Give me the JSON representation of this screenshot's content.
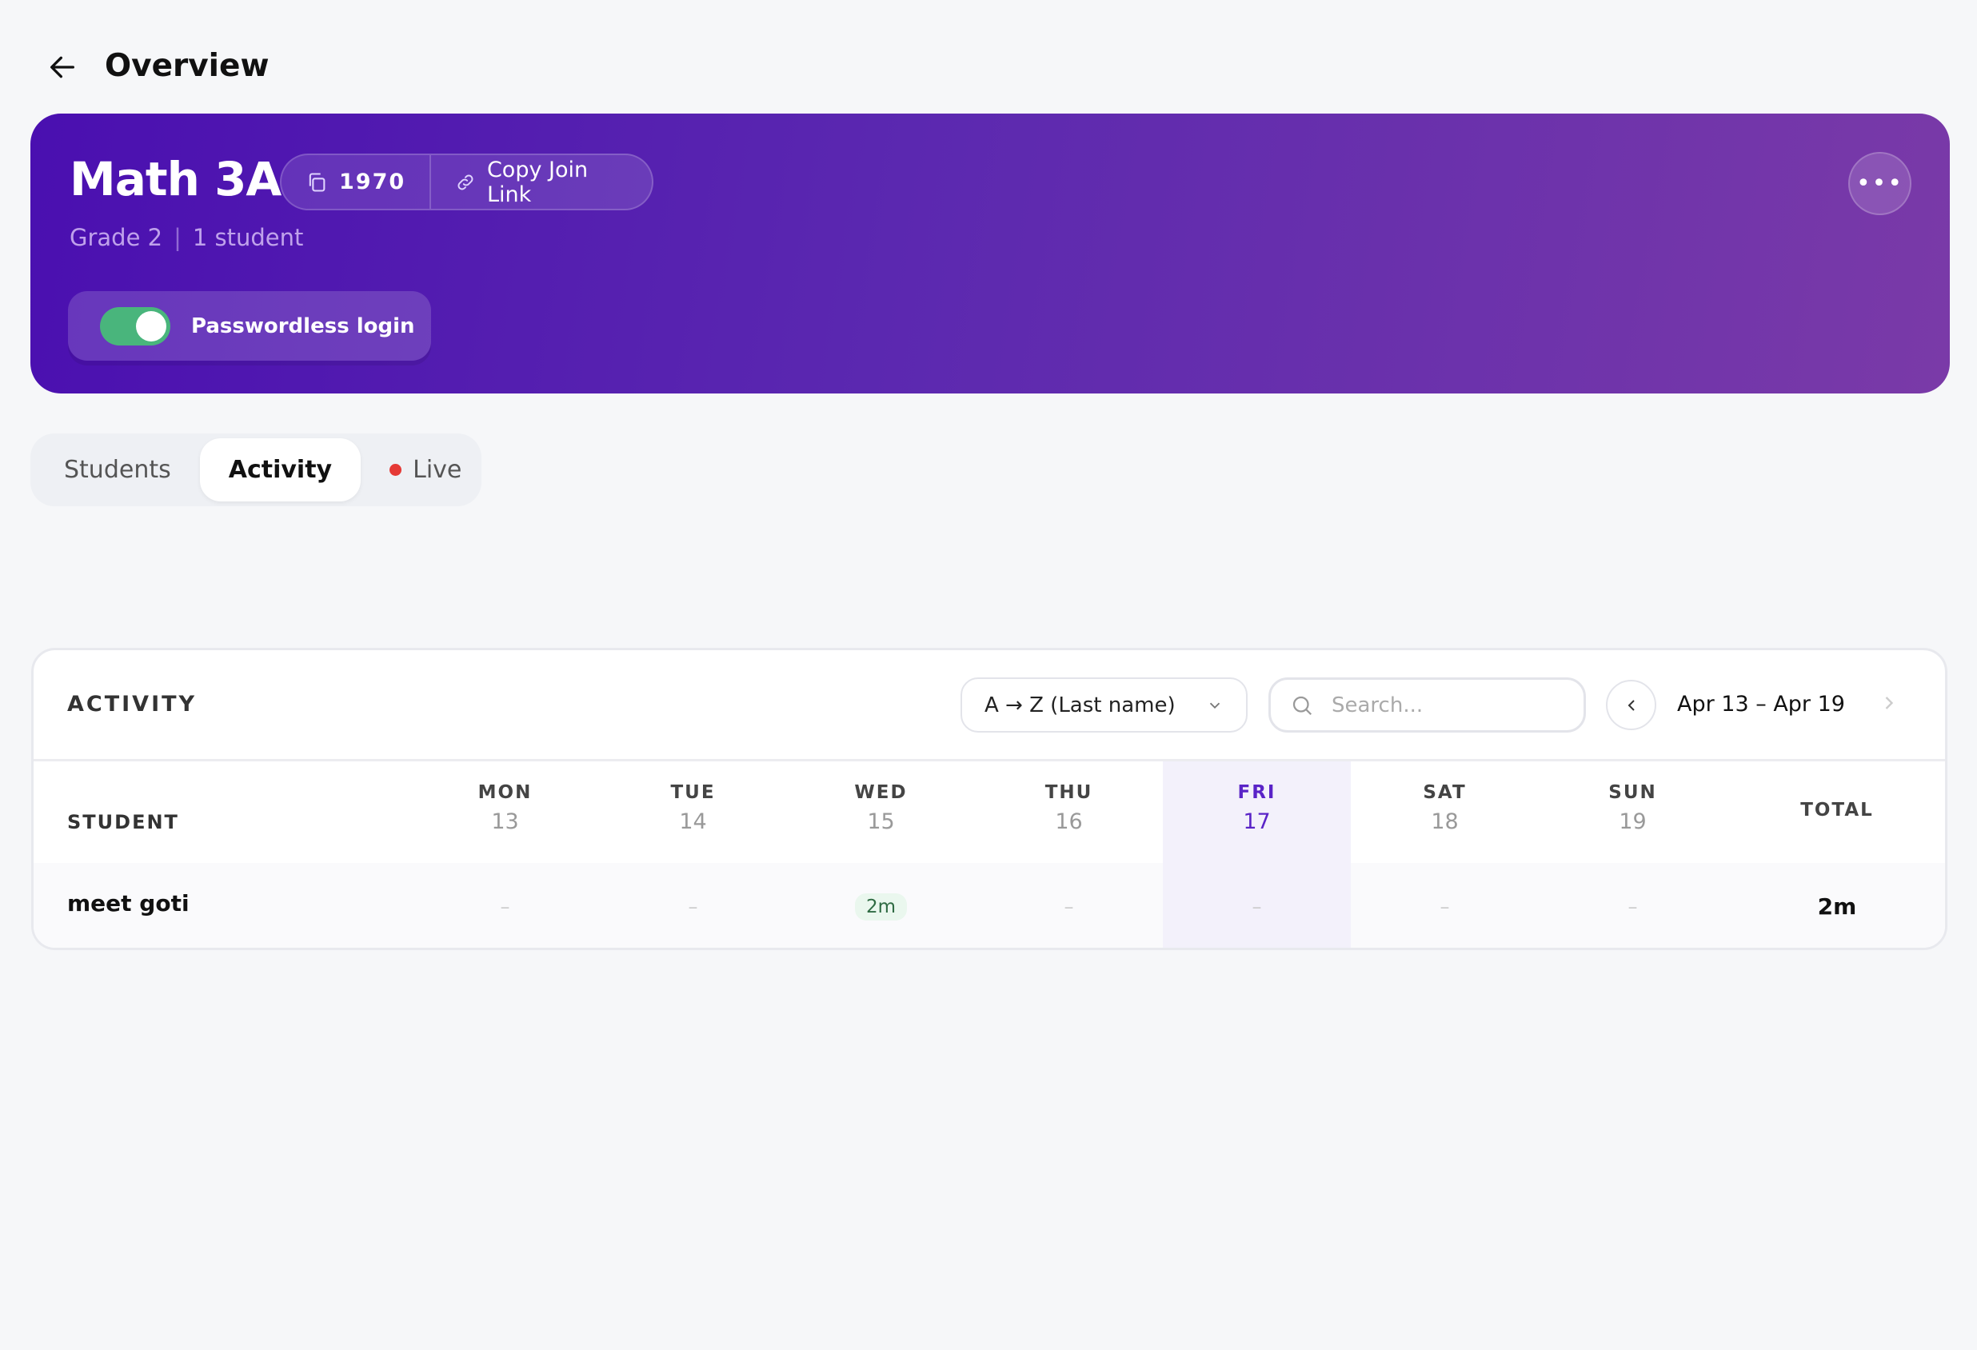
{
  "header": {
    "title": "Overview",
    "back_icon": "arrow-left-icon"
  },
  "class": {
    "name": "Math 3A",
    "code": "1970",
    "copy_link_label": "Copy Join Link",
    "grade": "Grade 2",
    "students": "1 student",
    "passwordless_label": "Passwordless login",
    "passwordless_enabled": true,
    "more_label": "•••"
  },
  "colors": {
    "banner_start": "#4a0fb0",
    "banner_end": "#7a3aa8",
    "toggle_on": "#49b57c",
    "today": "#5a24c7",
    "live_dot": "#e53935"
  },
  "tabs": [
    {
      "label": "Students"
    },
    {
      "label": "Activity",
      "active": true
    },
    {
      "label": "Live"
    }
  ],
  "activity": {
    "title": "ACTIVITY",
    "sort": "A → Z (Last name)",
    "search_placeholder": "Search...",
    "range": "Apr 13 – Apr 19",
    "student_header": "STUDENT",
    "total_header": "TOTAL",
    "days": [
      {
        "name": "MON",
        "num": "13"
      },
      {
        "name": "TUE",
        "num": "14"
      },
      {
        "name": "WED",
        "num": "15"
      },
      {
        "name": "THU",
        "num": "16"
      },
      {
        "name": "FRI",
        "num": "17",
        "today": true
      },
      {
        "name": "SAT",
        "num": "18"
      },
      {
        "name": "SUN",
        "num": "19"
      }
    ],
    "rows": [
      {
        "student": "meet goti",
        "values": [
          "–",
          "–",
          "2m",
          "–",
          "–",
          "–",
          "–"
        ],
        "total": "2m"
      }
    ]
  }
}
